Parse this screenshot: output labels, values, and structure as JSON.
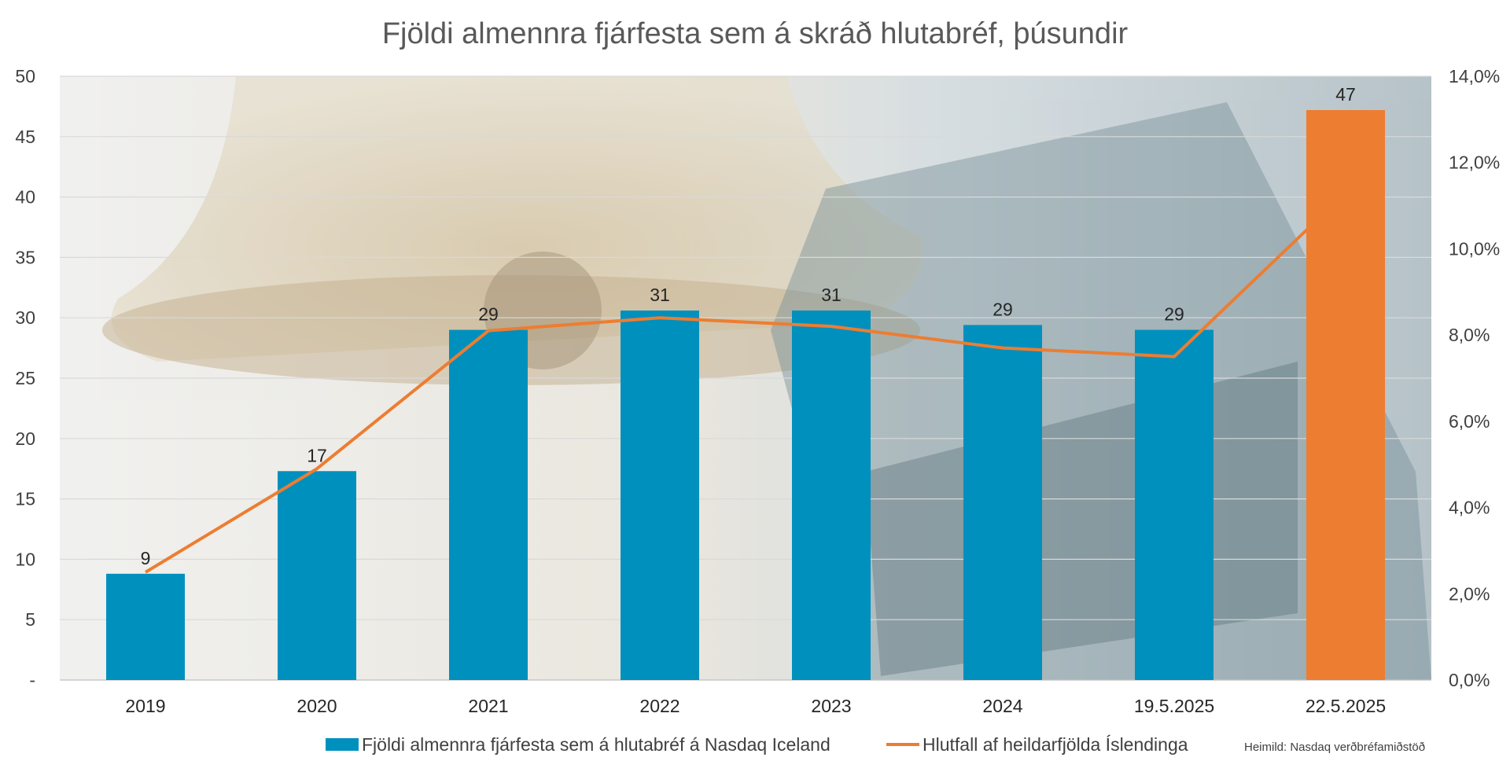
{
  "chart_data": {
    "type": "bar",
    "title": "Fjöldi almennra fjárfesta sem á skráð hlutabréf, þúsundir",
    "categories": [
      "2019",
      "2020",
      "2021",
      "2022",
      "2023",
      "2024",
      "19.5.2025",
      "22.5.2025"
    ],
    "series": [
      {
        "name": "Fjöldi almennra fjárfesta sem á hlutabréf á Nasdaq Iceland",
        "type": "bar",
        "axis": "left",
        "values": [
          8.8,
          17.3,
          29.0,
          30.6,
          30.6,
          29.4,
          29.0,
          47.2
        ],
        "data_labels": [
          "9",
          "17",
          "29",
          "31",
          "31",
          "29",
          "29",
          "47"
        ],
        "color": "#0090BE",
        "highlight_color": "#ED7D31",
        "highlight_index": 7
      },
      {
        "name": "Hlutfall af heildarfjölda Íslendinga",
        "type": "line",
        "axis": "right",
        "values": [
          2.5,
          4.9,
          8.1,
          8.4,
          8.2,
          7.7,
          7.5,
          11.3
        ],
        "color": "#ED7D31"
      }
    ],
    "left_axis": {
      "ylim": [
        0,
        50
      ],
      "ticks": [
        0,
        5,
        10,
        15,
        20,
        25,
        30,
        35,
        40,
        45,
        50
      ],
      "tick_labels": [
        "-",
        "5",
        "10",
        "15",
        "20",
        "25",
        "30",
        "35",
        "40",
        "45",
        "50"
      ]
    },
    "right_axis": {
      "ylim": [
        0,
        14
      ],
      "ticks": [
        0,
        2,
        4,
        6,
        8,
        10,
        12,
        14
      ],
      "tick_labels": [
        "0,0%",
        "2,0%",
        "4,0%",
        "6,0%",
        "8,0%",
        "10,0%",
        "12,0%",
        "14,0%"
      ]
    },
    "grid": true,
    "legend_position": "bottom",
    "source_note": "Heimild: Nasdaq verðbréfamiðstöð"
  }
}
